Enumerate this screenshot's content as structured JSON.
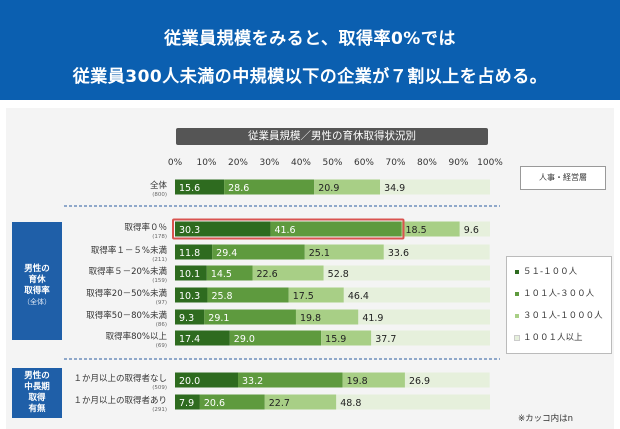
{
  "header": {
    "line1": "従業員規模をみると、取得率0%では",
    "line2": "従業員300人未満の中規模以下の企業が７割以上を占める。"
  },
  "side_labels": {
    "group1": {
      "l1": "男性の",
      "l2": "育休",
      "l3": "取得率",
      "l4": "（全体）"
    },
    "group2": {
      "l1": "男性の",
      "l2": "中長期",
      "l3": "取得",
      "l4": "有無"
    }
  },
  "note_box": "人事・経営層",
  "footnote": "※カッコ内はn",
  "colors": {
    "s1": "#2e6b1f",
    "s2": "#5e9a3e",
    "s3": "#a8cf86",
    "s4": "#e6f0dc",
    "highlight": "#d9534f"
  },
  "chart_data": {
    "type": "bar",
    "orientation": "horizontal-stacked-100",
    "title": "従業員規模／男性の育休取得状況別",
    "x_ticks": [
      "0%",
      "10%",
      "20%",
      "30%",
      "40%",
      "50%",
      "60%",
      "70%",
      "80%",
      "90%",
      "100%"
    ],
    "xlim": [
      0,
      100
    ],
    "legend_position": "right",
    "series": [
      {
        "name": "５１-１００人"
      },
      {
        "name": "１０１人-３００人"
      },
      {
        "name": "３０１人-１０００人"
      },
      {
        "name": "１００１人以上"
      }
    ],
    "rows": [
      {
        "label": "全体",
        "n": "(800)",
        "values": [
          15.6,
          28.6,
          20.9,
          34.9
        ]
      },
      {
        "label": "取得率０％",
        "n": "(178)",
        "values": [
          30.3,
          41.6,
          18.5,
          9.6
        ],
        "highlight": true
      },
      {
        "label": "取得率１－５%未満",
        "n": "(211)",
        "values": [
          11.8,
          29.4,
          25.1,
          33.6
        ]
      },
      {
        "label": "取得率５－20%未満",
        "n": "(159)",
        "values": [
          10.1,
          14.5,
          22.6,
          52.8
        ]
      },
      {
        "label": "取得率20－50%未満",
        "n": "(97)",
        "values": [
          10.3,
          25.8,
          17.5,
          46.4
        ]
      },
      {
        "label": "取得率50－80%未満",
        "n": "(86)",
        "values": [
          9.3,
          29.1,
          19.8,
          41.9
        ]
      },
      {
        "label": "取得率80%以上",
        "n": "(69)",
        "values": [
          17.4,
          29.0,
          15.9,
          37.7
        ]
      },
      {
        "label": "１か月以上の取得者なし",
        "n": "(509)",
        "values": [
          20.0,
          33.2,
          19.8,
          26.9
        ]
      },
      {
        "label": "１か月以上の取得者あり",
        "n": "(291)",
        "values": [
          7.9,
          20.6,
          22.7,
          48.8
        ]
      }
    ]
  }
}
